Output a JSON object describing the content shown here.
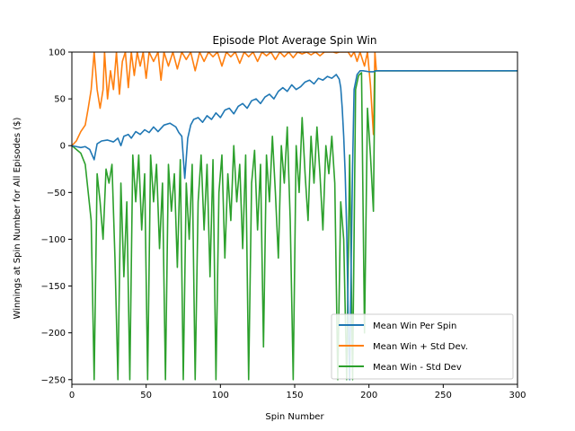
{
  "chart_data": {
    "type": "line",
    "title": "Episode Plot Average Spin Win",
    "xlabel": "Spin Number",
    "ylabel": "Winnings at Spin Number for All Episodes ($)",
    "xlim": [
      0,
      300
    ],
    "ylim": [
      -255,
      100
    ],
    "xticks": [
      0,
      50,
      100,
      150,
      200,
      250,
      300
    ],
    "yticks": [
      -250,
      -200,
      -150,
      -100,
      -50,
      0,
      50,
      100
    ],
    "grid": false,
    "legend_position": "lower-right",
    "series": [
      {
        "name": "Mean Win Per Spin",
        "color": "#1f77b4",
        "points": [
          [
            0,
            0
          ],
          [
            3,
            -1
          ],
          [
            6,
            -2
          ],
          [
            9,
            -1
          ],
          [
            12,
            -4
          ],
          [
            15,
            -15
          ],
          [
            17,
            2
          ],
          [
            20,
            5
          ],
          [
            24,
            6
          ],
          [
            28,
            4
          ],
          [
            31,
            8
          ],
          [
            33,
            0
          ],
          [
            35,
            10
          ],
          [
            38,
            12
          ],
          [
            40,
            8
          ],
          [
            43,
            15
          ],
          [
            46,
            12
          ],
          [
            49,
            17
          ],
          [
            52,
            14
          ],
          [
            55,
            20
          ],
          [
            58,
            15
          ],
          [
            62,
            22
          ],
          [
            66,
            24
          ],
          [
            70,
            20
          ],
          [
            72,
            14
          ],
          [
            74,
            10
          ],
          [
            76,
            -35
          ],
          [
            78,
            8
          ],
          [
            80,
            22
          ],
          [
            82,
            28
          ],
          [
            85,
            30
          ],
          [
            88,
            25
          ],
          [
            91,
            32
          ],
          [
            94,
            28
          ],
          [
            97,
            35
          ],
          [
            100,
            30
          ],
          [
            103,
            38
          ],
          [
            106,
            40
          ],
          [
            109,
            34
          ],
          [
            112,
            42
          ],
          [
            115,
            45
          ],
          [
            118,
            40
          ],
          [
            121,
            48
          ],
          [
            124,
            50
          ],
          [
            127,
            45
          ],
          [
            130,
            52
          ],
          [
            133,
            55
          ],
          [
            136,
            50
          ],
          [
            139,
            58
          ],
          [
            142,
            62
          ],
          [
            145,
            58
          ],
          [
            148,
            65
          ],
          [
            151,
            60
          ],
          [
            154,
            63
          ],
          [
            157,
            68
          ],
          [
            160,
            70
          ],
          [
            163,
            66
          ],
          [
            166,
            72
          ],
          [
            169,
            70
          ],
          [
            172,
            74
          ],
          [
            175,
            72
          ],
          [
            178,
            76
          ],
          [
            180,
            71
          ],
          [
            181,
            62
          ],
          [
            182,
            40
          ],
          [
            183,
            10
          ],
          [
            184,
            -30
          ],
          [
            185,
            -90
          ],
          [
            186,
            -180
          ],
          [
            187,
            -250
          ],
          [
            188,
            -130
          ],
          [
            189,
            -20
          ],
          [
            190,
            60
          ],
          [
            192,
            76
          ],
          [
            194,
            80
          ],
          [
            196,
            80
          ],
          [
            200,
            79
          ],
          [
            203,
            79
          ],
          [
            205,
            80
          ],
          [
            300,
            80
          ]
        ]
      },
      {
        "name": "Mean Win + Std Dev.",
        "color": "#ff7f0e",
        "points": [
          [
            0,
            0
          ],
          [
            3,
            5
          ],
          [
            6,
            15
          ],
          [
            9,
            22
          ],
          [
            11,
            40
          ],
          [
            13,
            60
          ],
          [
            15,
            100
          ],
          [
            17,
            60
          ],
          [
            19,
            40
          ],
          [
            21,
            60
          ],
          [
            22,
            100
          ],
          [
            24,
            50
          ],
          [
            26,
            80
          ],
          [
            28,
            60
          ],
          [
            30,
            100
          ],
          [
            32,
            55
          ],
          [
            34,
            90
          ],
          [
            36,
            100
          ],
          [
            38,
            62
          ],
          [
            40,
            100
          ],
          [
            42,
            75
          ],
          [
            44,
            100
          ],
          [
            46,
            85
          ],
          [
            48,
            100
          ],
          [
            50,
            72
          ],
          [
            52,
            100
          ],
          [
            55,
            90
          ],
          [
            58,
            100
          ],
          [
            60,
            70
          ],
          [
            62,
            100
          ],
          [
            65,
            85
          ],
          [
            68,
            100
          ],
          [
            71,
            82
          ],
          [
            74,
            100
          ],
          [
            77,
            92
          ],
          [
            80,
            100
          ],
          [
            83,
            80
          ],
          [
            86,
            100
          ],
          [
            89,
            90
          ],
          [
            92,
            100
          ],
          [
            95,
            95
          ],
          [
            98,
            100
          ],
          [
            101,
            85
          ],
          [
            104,
            100
          ],
          [
            107,
            95
          ],
          [
            110,
            100
          ],
          [
            113,
            88
          ],
          [
            116,
            100
          ],
          [
            119,
            95
          ],
          [
            122,
            100
          ],
          [
            125,
            90
          ],
          [
            128,
            100
          ],
          [
            131,
            96
          ],
          [
            134,
            100
          ],
          [
            137,
            92
          ],
          [
            140,
            100
          ],
          [
            143,
            95
          ],
          [
            146,
            100
          ],
          [
            149,
            94
          ],
          [
            152,
            100
          ],
          [
            155,
            98
          ],
          [
            158,
            100
          ],
          [
            161,
            97
          ],
          [
            164,
            100
          ],
          [
            167,
            96
          ],
          [
            170,
            100
          ],
          [
            172,
            100
          ],
          [
            174,
            100
          ],
          [
            176,
            100
          ],
          [
            178,
            99
          ],
          [
            180,
            100
          ],
          [
            182,
            100
          ],
          [
            184,
            100
          ],
          [
            186,
            100
          ],
          [
            188,
            95
          ],
          [
            190,
            100
          ],
          [
            192,
            90
          ],
          [
            194,
            100
          ],
          [
            197,
            85
          ],
          [
            199,
            100
          ],
          [
            201,
            65
          ],
          [
            203,
            12
          ],
          [
            204,
            100
          ],
          [
            205,
            80
          ],
          [
            300,
            80
          ]
        ]
      },
      {
        "name": "Mean Win - Std Dev",
        "color": "#2ca02c",
        "points": [
          [
            0,
            0
          ],
          [
            3,
            -4
          ],
          [
            6,
            -8
          ],
          [
            9,
            -20
          ],
          [
            11,
            -50
          ],
          [
            13,
            -80
          ],
          [
            15,
            -250
          ],
          [
            17,
            -30
          ],
          [
            19,
            -60
          ],
          [
            21,
            -100
          ],
          [
            23,
            -25
          ],
          [
            25,
            -40
          ],
          [
            27,
            -20
          ],
          [
            29,
            -120
          ],
          [
            31,
            -250
          ],
          [
            33,
            -40
          ],
          [
            35,
            -140
          ],
          [
            37,
            -60
          ],
          [
            39,
            -250
          ],
          [
            41,
            -10
          ],
          [
            43,
            -60
          ],
          [
            45,
            -10
          ],
          [
            47,
            -90
          ],
          [
            49,
            -30
          ],
          [
            51,
            -250
          ],
          [
            53,
            -10
          ],
          [
            55,
            -60
          ],
          [
            57,
            -20
          ],
          [
            59,
            -110
          ],
          [
            61,
            -40
          ],
          [
            63,
            -250
          ],
          [
            65,
            -20
          ],
          [
            67,
            -70
          ],
          [
            69,
            -30
          ],
          [
            71,
            -130
          ],
          [
            73,
            -15
          ],
          [
            75,
            -250
          ],
          [
            77,
            -40
          ],
          [
            79,
            -100
          ],
          [
            81,
            -20
          ],
          [
            83,
            -250
          ],
          [
            85,
            -60
          ],
          [
            87,
            -10
          ],
          [
            89,
            -90
          ],
          [
            91,
            -20
          ],
          [
            93,
            -140
          ],
          [
            95,
            -15
          ],
          [
            97,
            -250
          ],
          [
            99,
            -50
          ],
          [
            101,
            -10
          ],
          [
            103,
            -120
          ],
          [
            105,
            -30
          ],
          [
            107,
            -80
          ],
          [
            109,
            0
          ],
          [
            111,
            -60
          ],
          [
            113,
            -20
          ],
          [
            115,
            -110
          ],
          [
            117,
            -10
          ],
          [
            119,
            -250
          ],
          [
            121,
            -40
          ],
          [
            123,
            -5
          ],
          [
            125,
            -90
          ],
          [
            127,
            -20
          ],
          [
            129,
            -215
          ],
          [
            131,
            -10
          ],
          [
            133,
            -60
          ],
          [
            135,
            10
          ],
          [
            137,
            -50
          ],
          [
            139,
            -120
          ],
          [
            141,
            0
          ],
          [
            143,
            -40
          ],
          [
            145,
            20
          ],
          [
            147,
            -80
          ],
          [
            149,
            -250
          ],
          [
            151,
            0
          ],
          [
            153,
            -50
          ],
          [
            155,
            30
          ],
          [
            157,
            -30
          ],
          [
            159,
            -80
          ],
          [
            161,
            10
          ],
          [
            163,
            -40
          ],
          [
            165,
            20
          ],
          [
            167,
            -30
          ],
          [
            169,
            -90
          ],
          [
            171,
            0
          ],
          [
            173,
            -30
          ],
          [
            175,
            10
          ],
          [
            177,
            -40
          ],
          [
            179,
            -250
          ],
          [
            181,
            -60
          ],
          [
            183,
            -100
          ],
          [
            185,
            -250
          ],
          [
            187,
            -10
          ],
          [
            189,
            -250
          ],
          [
            191,
            60
          ],
          [
            193,
            75
          ],
          [
            195,
            78
          ],
          [
            197,
            -200
          ],
          [
            199,
            40
          ],
          [
            201,
            -10
          ],
          [
            203,
            -70
          ],
          [
            204,
            80
          ],
          [
            300,
            80
          ]
        ]
      }
    ]
  }
}
